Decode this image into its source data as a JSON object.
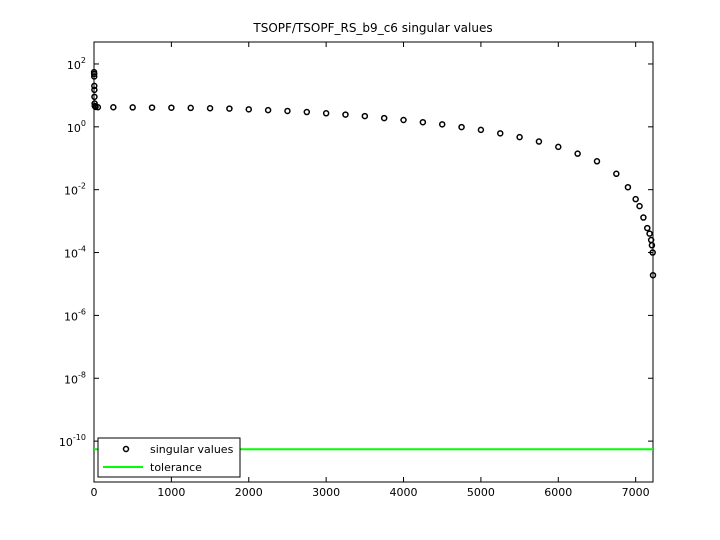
{
  "chart_data": {
    "type": "scatter",
    "title": "TSOPF/TSOPF_RS_b9_c6 singular values",
    "log_y": true,
    "xlim": [
      0,
      7224
    ],
    "xticks": [
      0,
      1000,
      2000,
      3000,
      4000,
      5000,
      6000,
      7000
    ],
    "ylim": [
      5e-12,
      500
    ],
    "yticks": [
      {
        "value": 100,
        "label": "10^2"
      },
      {
        "value": 1,
        "label": "10^0"
      },
      {
        "value": 0.01,
        "label": "10^-2"
      },
      {
        "value": 0.0001,
        "label": "10^-4"
      },
      {
        "value": 1e-06,
        "label": "10^-6"
      },
      {
        "value": 1e-08,
        "label": "10^-8"
      },
      {
        "value": 1e-10,
        "label": "10^-10"
      }
    ],
    "legend": "lower left",
    "series": [
      {
        "name": "singular values",
        "type": "scatter",
        "color": "#000000",
        "x": [
          1,
          2,
          3,
          4,
          5,
          6,
          8,
          10,
          20,
          50,
          250,
          500,
          750,
          1000,
          1250,
          1500,
          1750,
          2000,
          2250,
          2500,
          2750,
          3000,
          3250,
          3500,
          3750,
          4000,
          4250,
          4500,
          4750,
          5000,
          5250,
          5500,
          5750,
          6000,
          6250,
          6500,
          6750,
          6900,
          7000,
          7050,
          7100,
          7150,
          7180,
          7200,
          7210,
          7220,
          7224
        ],
        "values": [
          55,
          48,
          40,
          20,
          15,
          9,
          5.5,
          4.6,
          4.3,
          4.2,
          4.2,
          4.15,
          4.1,
          4.05,
          4.0,
          3.9,
          3.8,
          3.6,
          3.4,
          3.2,
          2.95,
          2.7,
          2.45,
          2.2,
          1.9,
          1.65,
          1.4,
          1.2,
          0.98,
          0.8,
          0.62,
          0.47,
          0.34,
          0.23,
          0.14,
          0.08,
          0.032,
          0.012,
          0.005,
          0.003,
          0.0013,
          0.0006,
          0.0004,
          0.00025,
          0.00017,
          0.0001,
          1.9e-05
        ]
      },
      {
        "name": "tolerance",
        "type": "line",
        "color": "#00ff00",
        "x": [
          0,
          7224
        ],
        "values": [
          5.5e-11,
          5.5e-11
        ]
      }
    ]
  }
}
